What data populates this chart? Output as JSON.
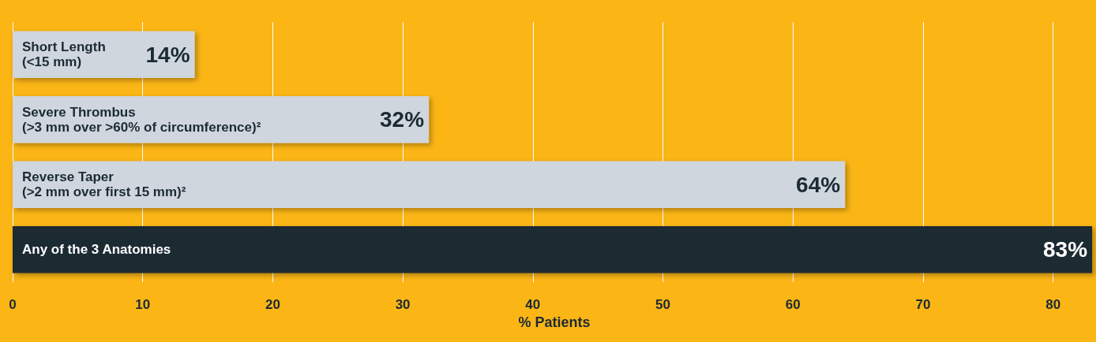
{
  "chart_data": {
    "type": "bar",
    "orientation": "horizontal",
    "xlabel": "% Patients",
    "categories": [
      "Short Length\n(<15 mm)",
      "Severe Thrombus\n(>3 mm over >60% of circumference)²",
      "Reverse Taper\n(>2 mm over first 15 mm)²",
      "Any of the 3 Anatomies"
    ],
    "values": [
      14,
      32,
      64,
      83
    ],
    "value_labels": [
      "14%",
      "32%",
      "64%",
      "83%"
    ],
    "colors": [
      "#cfd6dd",
      "#cfd6dd",
      "#cfd6dd",
      "#1b2a33"
    ],
    "xlim": [
      0,
      83.3
    ],
    "xticks": [
      0,
      10,
      20,
      30,
      40,
      50,
      60,
      70,
      80
    ],
    "grid": "x"
  }
}
